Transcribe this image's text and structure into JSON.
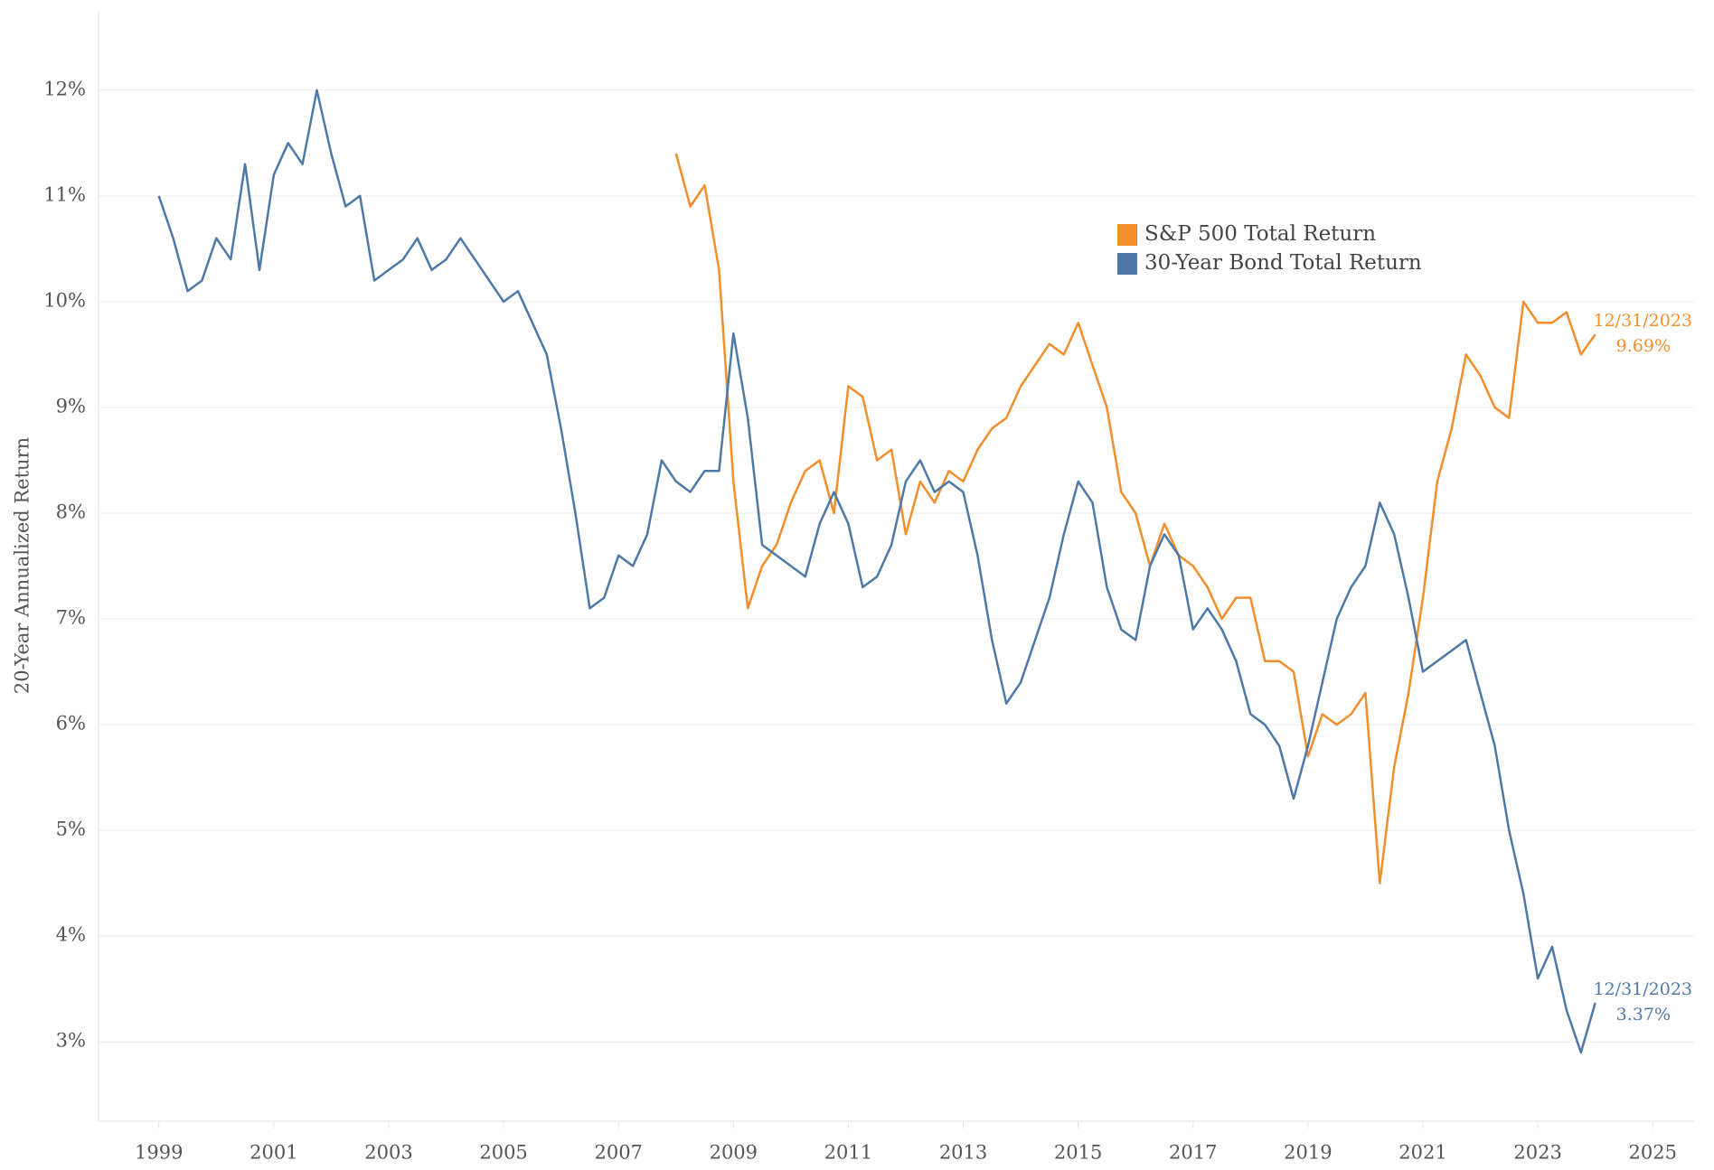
{
  "chart_data": {
    "type": "line",
    "y_label": "20-Year Annualized Return",
    "x": [
      1999,
      1999.25,
      1999.5,
      1999.75,
      2000,
      2000.25,
      2000.5,
      2000.75,
      2001,
      2001.25,
      2001.5,
      2001.75,
      2002,
      2002.25,
      2002.5,
      2002.75,
      2003,
      2003.25,
      2003.5,
      2003.75,
      2004,
      2004.25,
      2004.5,
      2004.75,
      2005,
      2005.25,
      2005.5,
      2005.75,
      2006,
      2006.25,
      2006.5,
      2006.75,
      2007,
      2007.25,
      2007.5,
      2007.75,
      2008,
      2008.25,
      2008.5,
      2008.75,
      2009,
      2009.25,
      2009.5,
      2009.75,
      2010,
      2010.25,
      2010.5,
      2010.75,
      2011,
      2011.25,
      2011.5,
      2011.75,
      2012,
      2012.25,
      2012.5,
      2012.75,
      2013,
      2013.25,
      2013.5,
      2013.75,
      2014,
      2014.25,
      2014.5,
      2014.75,
      2015,
      2015.25,
      2015.5,
      2015.75,
      2016,
      2016.25,
      2016.5,
      2016.75,
      2017,
      2017.25,
      2017.5,
      2017.75,
      2018,
      2018.25,
      2018.5,
      2018.75,
      2019,
      2019.25,
      2019.5,
      2019.75,
      2020,
      2020.25,
      2020.5,
      2020.75,
      2021,
      2021.25,
      2021.5,
      2021.75,
      2022,
      2022.25,
      2022.5,
      2022.75,
      2023,
      2023.25,
      2023.5,
      2023.75,
      2024
    ],
    "series": [
      {
        "name": "S&P 500 Total Return",
        "color": "#f28e2b",
        "end_date": "12/31/2023",
        "values": [
          null,
          null,
          null,
          null,
          null,
          null,
          null,
          null,
          null,
          null,
          null,
          null,
          null,
          null,
          null,
          null,
          null,
          null,
          null,
          null,
          null,
          null,
          null,
          null,
          null,
          null,
          null,
          null,
          null,
          null,
          null,
          null,
          null,
          null,
          null,
          null,
          11.4,
          10.9,
          11.1,
          10.3,
          8.3,
          7.1,
          7.5,
          7.7,
          8.1,
          8.4,
          8.5,
          8.0,
          9.2,
          9.1,
          8.5,
          8.6,
          7.8,
          8.3,
          8.1,
          8.4,
          8.3,
          8.6,
          8.8,
          8.9,
          9.2,
          9.4,
          9.6,
          9.5,
          9.8,
          9.4,
          9.0,
          8.2,
          8.0,
          7.5,
          7.9,
          7.6,
          7.5,
          7.3,
          7.0,
          7.2,
          7.2,
          6.6,
          6.6,
          6.5,
          5.7,
          6.1,
          6.0,
          6.1,
          6.3,
          4.5,
          5.6,
          6.3,
          7.2,
          8.3,
          8.8,
          9.5,
          9.3,
          9.0,
          8.9,
          10.0,
          9.8,
          9.8,
          9.9,
          9.5,
          9.69
        ],
        "value_labels": [
          null,
          null,
          null,
          null,
          null,
          null,
          null,
          null,
          null,
          null,
          null,
          null,
          null,
          null,
          null,
          null,
          null,
          null,
          null,
          null,
          null,
          null,
          null,
          null,
          null,
          null,
          null,
          null,
          null,
          null,
          null,
          null,
          null,
          null,
          null,
          null,
          null,
          null,
          null,
          null,
          null,
          null,
          null,
          null,
          null,
          null,
          null,
          null,
          null,
          null,
          null,
          null,
          null,
          null,
          null,
          null,
          null,
          null,
          null,
          null,
          null,
          null,
          null,
          null,
          null,
          null,
          null,
          null,
          null,
          null,
          null,
          null,
          null,
          null,
          null,
          null,
          null,
          null,
          null,
          null,
          null,
          null,
          null,
          null,
          null,
          null,
          null,
          null,
          null,
          null,
          null,
          null,
          null,
          null,
          null,
          null,
          null,
          null,
          null,
          null,
          "9.69%"
        ]
      },
      {
        "name": "30-Year Bond Total Return",
        "color": "#4e79a7",
        "end_date": "12/31/2023",
        "values": [
          11.0,
          10.6,
          10.1,
          10.2,
          10.6,
          10.4,
          11.3,
          10.3,
          11.2,
          11.5,
          11.3,
          12.0,
          11.4,
          10.9,
          11.0,
          10.2,
          10.3,
          10.4,
          10.6,
          10.3,
          10.4,
          10.6,
          10.4,
          10.2,
          10.0,
          10.1,
          9.8,
          9.5,
          8.8,
          8.0,
          7.1,
          7.2,
          7.6,
          7.5,
          7.8,
          8.5,
          8.3,
          8.2,
          8.4,
          8.4,
          9.7,
          8.9,
          7.7,
          7.6,
          7.5,
          7.4,
          7.9,
          8.2,
          7.9,
          7.3,
          7.4,
          7.7,
          8.3,
          8.5,
          8.2,
          8.3,
          8.2,
          7.6,
          6.8,
          6.2,
          6.4,
          6.8,
          7.2,
          7.8,
          8.3,
          8.1,
          7.3,
          6.9,
          6.8,
          7.5,
          7.8,
          7.6,
          6.9,
          7.1,
          6.9,
          6.6,
          6.1,
          6.0,
          5.8,
          5.3,
          5.8,
          6.4,
          7.0,
          7.3,
          7.5,
          8.1,
          7.8,
          7.2,
          6.5,
          6.6,
          6.7,
          6.8,
          6.3,
          5.8,
          5.0,
          4.4,
          3.6,
          3.9,
          3.3,
          2.9,
          3.37
        ],
        "value_labels": [
          null,
          null,
          null,
          null,
          null,
          null,
          null,
          null,
          null,
          null,
          null,
          null,
          null,
          null,
          null,
          null,
          null,
          null,
          null,
          null,
          null,
          null,
          null,
          null,
          null,
          null,
          null,
          null,
          null,
          null,
          null,
          null,
          null,
          null,
          null,
          null,
          null,
          null,
          null,
          null,
          null,
          null,
          null,
          null,
          null,
          null,
          null,
          null,
          null,
          null,
          null,
          null,
          null,
          null,
          null,
          null,
          null,
          null,
          null,
          null,
          null,
          null,
          null,
          null,
          null,
          null,
          null,
          null,
          null,
          null,
          null,
          null,
          null,
          null,
          null,
          null,
          null,
          null,
          null,
          null,
          null,
          null,
          null,
          null,
          null,
          null,
          null,
          null,
          null,
          null,
          null,
          null,
          null,
          null,
          null,
          null,
          null,
          null,
          null,
          null,
          "3.37%"
        ]
      }
    ],
    "xlim": [
      1997.95,
      2025.72
    ],
    "xticks": [
      1999,
      2001,
      2003,
      2005,
      2007,
      2009,
      2011,
      2013,
      2015,
      2017,
      2019,
      2021,
      2023,
      2025
    ],
    "ylim": [
      2.25,
      12.75
    ],
    "yticks": [
      {
        "value": 3,
        "label": "3%"
      },
      {
        "value": 4,
        "label": "4%"
      },
      {
        "value": 5,
        "label": "5%"
      },
      {
        "value": 6,
        "label": "6%"
      },
      {
        "value": 7,
        "label": "7%"
      },
      {
        "value": 8,
        "label": "8%"
      },
      {
        "value": 9,
        "label": "9%"
      },
      {
        "value": 10,
        "label": "10%"
      },
      {
        "value": 11,
        "label": "11%"
      },
      {
        "value": 12,
        "label": "12%"
      }
    ],
    "grid": true,
    "legend": "upper right"
  }
}
